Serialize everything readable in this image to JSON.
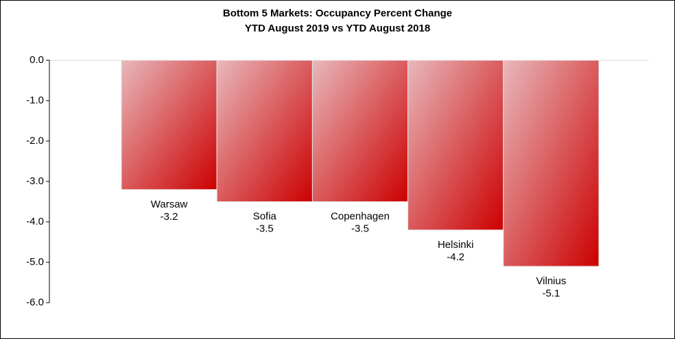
{
  "chart_data": {
    "type": "bar",
    "title": "Bottom 5 Markets: Occupancy Percent Change",
    "subtitle": "YTD August 2019 vs YTD August 2018",
    "categories": [
      "Warsaw",
      "Sofia",
      "Copenhagen",
      "Helsinki",
      "Vilnius"
    ],
    "values": [
      -3.2,
      -3.5,
      -3.5,
      -4.2,
      -5.1
    ],
    "color": "#cc0000",
    "ylim": [
      -6,
      0
    ],
    "yticks": [
      {
        "value": 0,
        "label": "0.0"
      },
      {
        "value": -1,
        "label": "-1.0"
      },
      {
        "value": -2,
        "label": "-2.0"
      },
      {
        "value": -3,
        "label": "-3.0"
      },
      {
        "value": -4,
        "label": "-4.0"
      },
      {
        "value": -5,
        "label": "-5.0"
      },
      {
        "value": -6,
        "label": "-6.0"
      }
    ],
    "grid": false
  }
}
